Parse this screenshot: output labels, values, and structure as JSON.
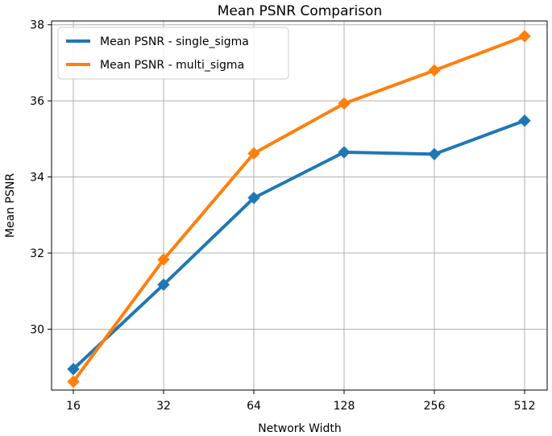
{
  "chart_data": {
    "type": "line",
    "title": "Mean PSNR Comparison",
    "xlabel": "Network Width",
    "ylabel": "Mean PSNR",
    "x_scale": "log2",
    "categories": [
      "16",
      "32",
      "64",
      "128",
      "256",
      "512"
    ],
    "x": [
      16,
      32,
      64,
      128,
      256,
      512
    ],
    "ylim": [
      28.4,
      38.1
    ],
    "yticks": [
      "30",
      "32",
      "34",
      "36",
      "38"
    ],
    "grid": true,
    "legend_position": "upper left",
    "marker": "diamond",
    "series": [
      {
        "name": "Mean PSNR - single_sigma",
        "color": "#1f77b4",
        "values": [
          28.95,
          31.17,
          33.45,
          34.65,
          34.6,
          35.48
        ]
      },
      {
        "name": "Mean PSNR - multi_sigma",
        "color": "#ff7f0e",
        "values": [
          28.62,
          31.83,
          34.62,
          35.93,
          36.8,
          37.7
        ]
      }
    ]
  }
}
